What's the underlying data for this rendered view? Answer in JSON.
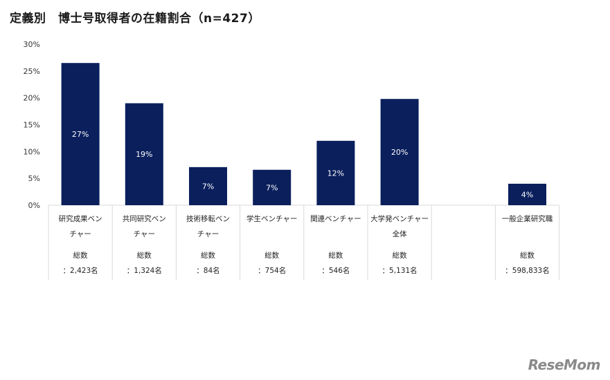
{
  "chart_data": {
    "type": "bar",
    "title": "定義別　博士号取得者の在籍割合（n=427）",
    "yticks": [
      "0%",
      "5%",
      "10%",
      "15%",
      "20%",
      "25%",
      "30%"
    ],
    "ylim": [
      0,
      30
    ],
    "categories": [
      {
        "label_lines": [
          "研究成果ベン",
          "チャー"
        ],
        "value": 26.5,
        "data_label": "27%",
        "count_lines": [
          "総数",
          "：2,423名"
        ]
      },
      {
        "label_lines": [
          "共同研究ベン",
          "チャー"
        ],
        "value": 19,
        "data_label": "19%",
        "count_lines": [
          "総数",
          "：1,324名"
        ]
      },
      {
        "label_lines": [
          "技術移転ベン",
          "チャー"
        ],
        "value": 7.1,
        "data_label": "7%",
        "count_lines": [
          "総数",
          "：84名"
        ]
      },
      {
        "label_lines": [
          "学生ベンチャー"
        ],
        "value": 6.6,
        "data_label": "7%",
        "count_lines": [
          "総数",
          "：754名"
        ]
      },
      {
        "label_lines": [
          "関連ベンチャー"
        ],
        "value": 12,
        "data_label": "12%",
        "count_lines": [
          "総数",
          "：546名"
        ]
      },
      {
        "label_lines": [
          "大学発ベンチャー",
          "全体"
        ],
        "value": 19.8,
        "data_label": "20%",
        "count_lines": [
          "総数",
          "：5,131名"
        ]
      },
      {
        "label_lines": [],
        "value": null,
        "data_label": "",
        "count_lines": []
      },
      {
        "label_lines": [
          "一般企業研究職"
        ],
        "value": 4,
        "data_label": "4%",
        "count_lines": [
          "総数",
          "：598,833名"
        ]
      }
    ],
    "colors": {
      "bar": "#0a1f5c"
    },
    "grid": false,
    "legend": "none"
  },
  "watermark": "ReseMom"
}
